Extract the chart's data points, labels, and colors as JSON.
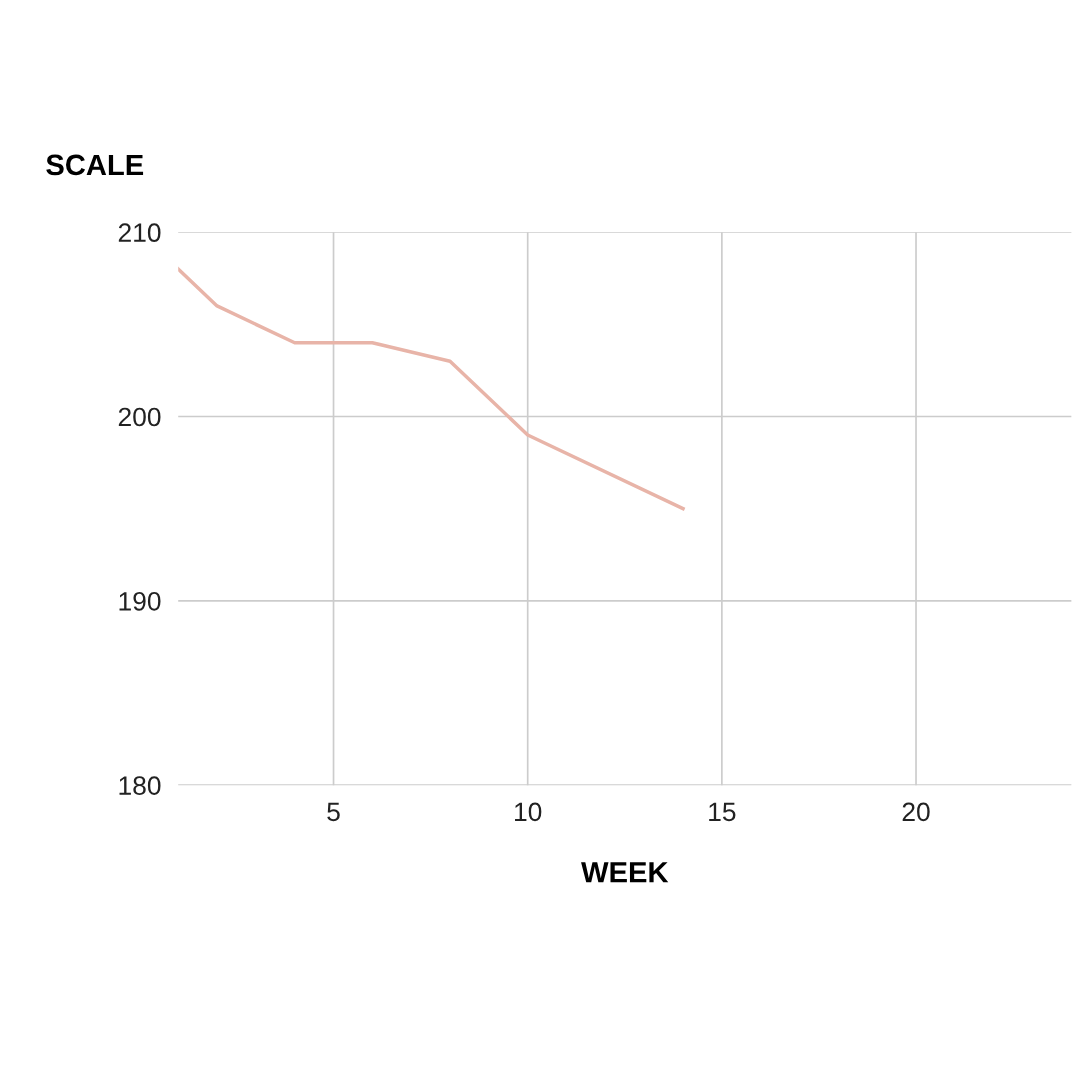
{
  "chart_data": {
    "type": "line",
    "xlabel": "WEEK",
    "ylabel": "SCALE",
    "x": [
      1,
      2,
      4,
      6,
      8,
      10,
      14
    ],
    "series": [
      {
        "color": "#e8b4a8",
        "values": [
          208,
          206,
          204,
          204,
          203,
          199,
          195
        ]
      }
    ],
    "xlim": [
      1,
      24
    ],
    "xticks": [
      5,
      10,
      15,
      20
    ],
    "ylim": [
      180,
      210
    ],
    "yticks": [
      180,
      190,
      200,
      210
    ],
    "grid": true,
    "marker": "none",
    "line_style": "solid"
  }
}
